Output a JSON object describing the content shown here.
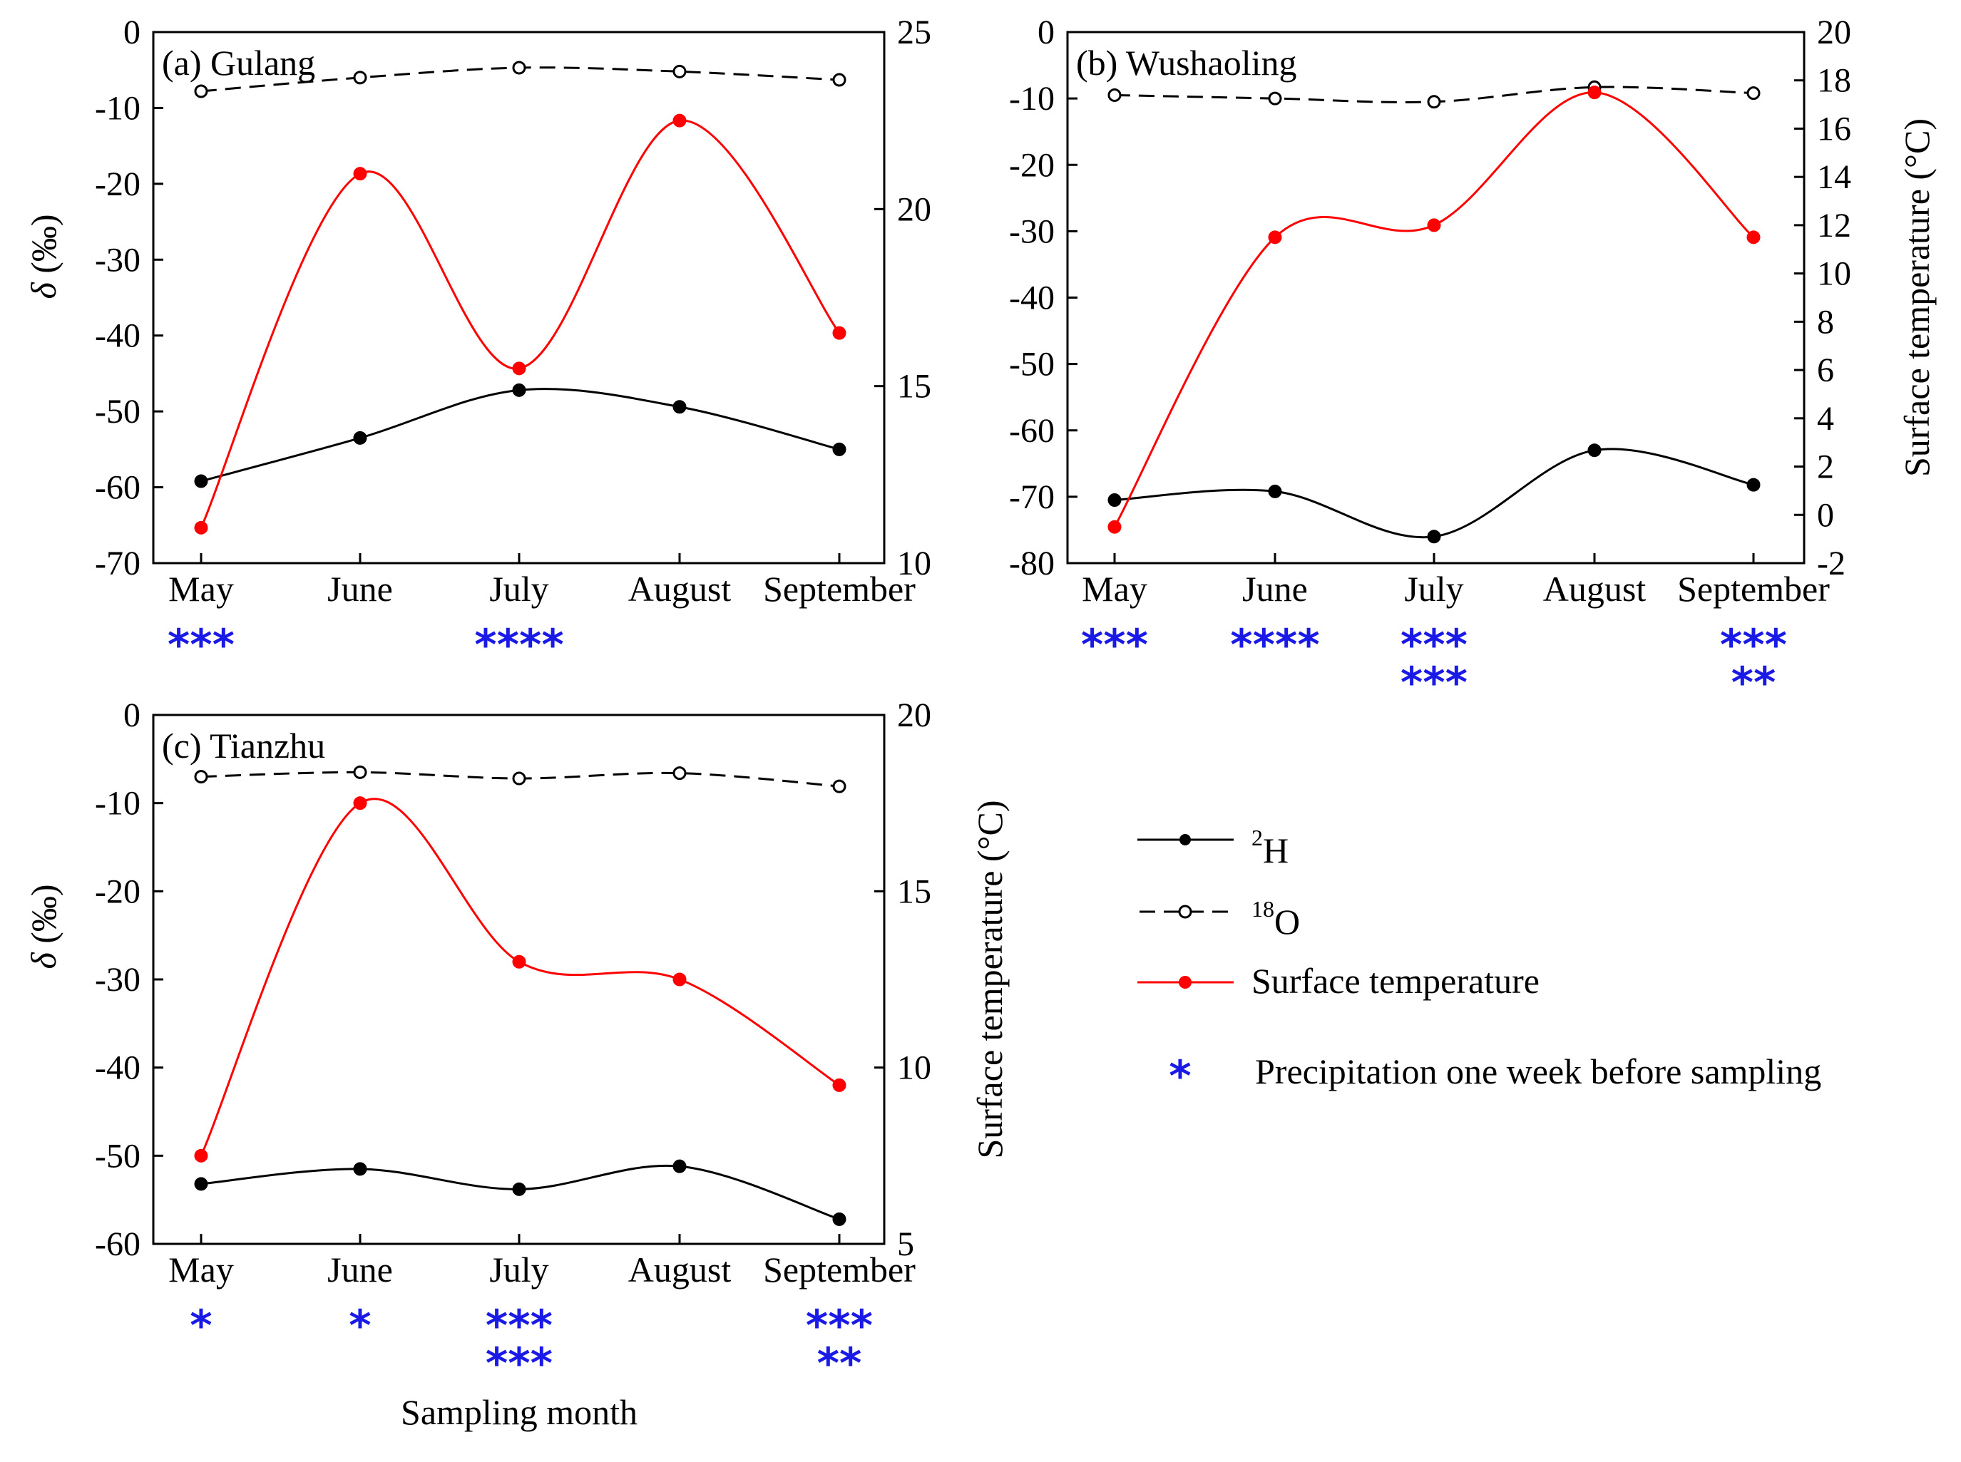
{
  "figure": {
    "xlabel": "Sampling month",
    "legend": {
      "h2": {
        "sup": "2",
        "base": "H"
      },
      "o18": {
        "sup": "18",
        "base": "O"
      },
      "temp": "Surface temperature",
      "precip_marker": "*",
      "precip": "Precipitation one week before sampling"
    },
    "colors": {
      "h2": "#000000",
      "o18": "#000000",
      "temp": "#ff0000",
      "precip": "#1a1ae6"
    }
  },
  "chart_data": [
    {
      "type": "line",
      "panel": "(a) Gulang",
      "categories": [
        "May",
        "June",
        "July",
        "August",
        "September"
      ],
      "ylabel_left": {
        "symbol": "δ",
        "unit": "(‰)"
      },
      "ylabel_right": "",
      "ylim_left": [
        -70,
        0
      ],
      "yticks_left": [
        0,
        -10,
        -20,
        -30,
        -40,
        -50,
        -60,
        -70
      ],
      "ylim_right": [
        10,
        25
      ],
      "yticks_right": [
        25,
        20,
        15,
        10
      ],
      "series": [
        {
          "name": "2H",
          "axis": "left",
          "values": [
            -59.2,
            -53.5,
            -47.2,
            -49.4,
            -55.0
          ]
        },
        {
          "name": "18O",
          "axis": "left",
          "values": [
            -7.8,
            -6.0,
            -4.7,
            -5.2,
            -6.3
          ]
        },
        {
          "name": "Surface temperature",
          "axis": "right",
          "values": [
            11.0,
            21.0,
            15.5,
            22.5,
            16.5
          ]
        }
      ],
      "precipitation_stars": [
        [
          "***"
        ],
        [],
        [
          "****"
        ],
        [],
        []
      ]
    },
    {
      "type": "line",
      "panel": "(b) Wushaoling",
      "categories": [
        "May",
        "June",
        "July",
        "August",
        "September"
      ],
      "ylabel_left": {
        "symbol": "",
        "unit": ""
      },
      "ylabel_right": "Surface temperature (°C)",
      "ylim_left": [
        -80,
        0
      ],
      "yticks_left": [
        0,
        -10,
        -20,
        -30,
        -40,
        -50,
        -60,
        -70,
        -80
      ],
      "ylim_right": [
        -2,
        20
      ],
      "yticks_right": [
        20,
        18,
        16,
        14,
        12,
        10,
        8,
        6,
        4,
        2,
        0,
        -2
      ],
      "series": [
        {
          "name": "2H",
          "axis": "left",
          "values": [
            -70.5,
            -69.2,
            -76.0,
            -63.0,
            -68.2
          ]
        },
        {
          "name": "18O",
          "axis": "left",
          "values": [
            -9.5,
            -10.0,
            -10.5,
            -8.3,
            -9.2
          ]
        },
        {
          "name": "Surface temperature",
          "axis": "right",
          "values": [
            -0.5,
            11.5,
            12.0,
            17.5,
            11.5
          ]
        }
      ],
      "precipitation_stars": [
        [
          "***"
        ],
        [
          "****"
        ],
        [
          "***",
          "***"
        ],
        [],
        [
          "***",
          "**"
        ]
      ]
    },
    {
      "type": "line",
      "panel": "(c) Tianzhu",
      "categories": [
        "May",
        "June",
        "July",
        "August",
        "September"
      ],
      "ylabel_left": {
        "symbol": "δ",
        "unit": "(‰)"
      },
      "ylabel_right": "Surface temperature (°C)",
      "ylim_left": [
        -60,
        0
      ],
      "yticks_left": [
        0,
        -10,
        -20,
        -30,
        -40,
        -50,
        -60
      ],
      "ylim_right": [
        5,
        20
      ],
      "yticks_right": [
        20,
        15,
        10,
        5
      ],
      "series": [
        {
          "name": "2H",
          "axis": "left",
          "values": [
            -53.2,
            -51.5,
            -53.8,
            -51.2,
            -57.2
          ]
        },
        {
          "name": "18O",
          "axis": "left",
          "values": [
            -7.0,
            -6.5,
            -7.2,
            -6.6,
            -8.1
          ]
        },
        {
          "name": "Surface temperature",
          "axis": "right",
          "values": [
            7.5,
            17.5,
            13.0,
            12.5,
            9.5
          ]
        }
      ],
      "precipitation_stars": [
        [
          "*"
        ],
        [
          "*"
        ],
        [
          "***",
          "***"
        ],
        [],
        [
          "***",
          "**"
        ]
      ]
    }
  ]
}
